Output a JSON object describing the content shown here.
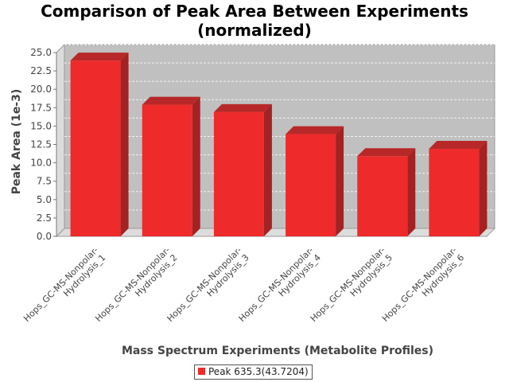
{
  "chart_data": {
    "type": "bar",
    "title_lines": [
      "Comparison of Peak Area Between Experiments",
      "(normalized)"
    ],
    "xlabel": "Mass Spectrum Experiments (Metabolite Profiles)",
    "ylabel": "Peak Area (1e-3)",
    "categories": [
      [
        "Hops_GC-MS-Nonpolar-",
        "Hydrolysis_1"
      ],
      [
        "Hops_GC-MS-Nonpolar-",
        "Hydrolysis_2"
      ],
      [
        "Hops_GC-MS-Nonpolar-",
        "Hydrolysis_3"
      ],
      [
        "Hops_GC-MS-Nonpolar-",
        "Hydrolysis_4"
      ],
      [
        "Hops_GC-MS-Nonpolar-",
        "Hydrolysis_5"
      ],
      [
        "Hops_GC-MS-Nonpolar-",
        "Hydrolysis_6"
      ]
    ],
    "series": [
      {
        "name": "Peak 635.3(43.7204)",
        "color": "#ee2a2a",
        "values": [
          23.9,
          17.9,
          16.9,
          13.9,
          10.9,
          11.9
        ]
      }
    ],
    "ylim": [
      0,
      25
    ],
    "yticks": [
      "0.0",
      "2.5",
      "5.0",
      "7.5",
      "10.0",
      "12.5",
      "15.0",
      "17.5",
      "20.0",
      "22.5",
      "25.0"
    ],
    "grid": true,
    "legend_position": "bottom",
    "style": "3d"
  }
}
